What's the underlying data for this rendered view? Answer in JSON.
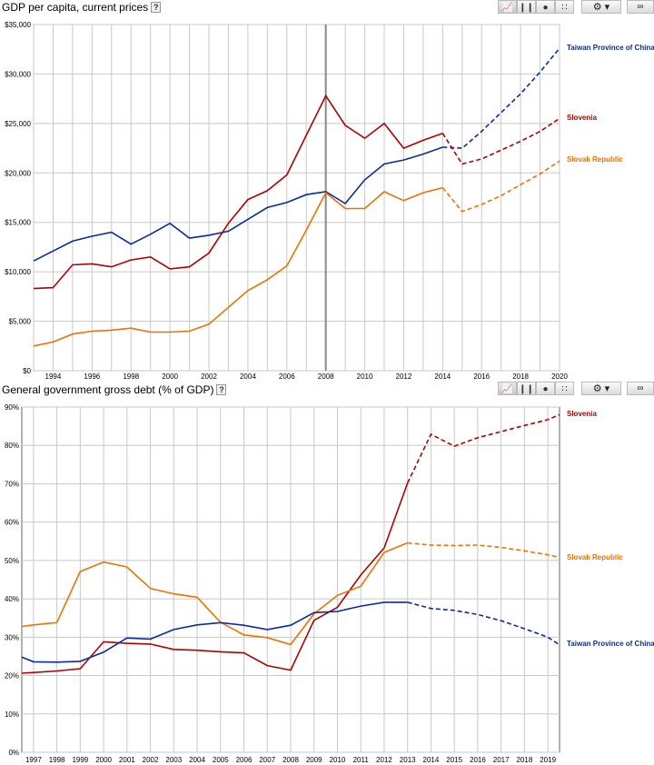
{
  "toolbar": {
    "line_icon": "line-chart-icon",
    "bar_icon": "bar-chart-icon",
    "map_icon": "globe-icon",
    "scatter_icon": "scatter-icon",
    "settings_icon": "gear-icon",
    "link_icon": "link-icon",
    "help_label": "?"
  },
  "colors": {
    "taiwan": "#0a2ba0",
    "slovenia": "#b00000",
    "slovak": "#f07000",
    "grid": "#c8c8c8",
    "axis": "#666666"
  },
  "chart_data": [
    {
      "type": "line",
      "title": "GDP per capita, current prices",
      "help": "?",
      "xlim": [
        1993,
        2020
      ],
      "ylim": [
        0,
        35000
      ],
      "x_ticks": [
        1994,
        1996,
        1998,
        2000,
        2002,
        2004,
        2006,
        2008,
        2010,
        2012,
        2014,
        2016,
        2018,
        2020
      ],
      "y_ticks": [
        0,
        5000,
        10000,
        15000,
        20000,
        25000,
        30000,
        35000
      ],
      "y_tick_labels": [
        "$0",
        "$5,000",
        "$10,000",
        "$15,000",
        "$20,000",
        "$25,000",
        "$30,000",
        "$35,000"
      ],
      "grid": true,
      "highlight_x": 2008,
      "legend_position": "right",
      "series": [
        {
          "name": "Taiwan Province of China",
          "color_key": "taiwan",
          "forecast_from": 2014,
          "x": [
            1993,
            1994,
            1995,
            1996,
            1997,
            1998,
            1999,
            2000,
            2001,
            2002,
            2003,
            2004,
            2005,
            2006,
            2007,
            2008,
            2009,
            2010,
            2011,
            2012,
            2013,
            2014,
            2015,
            2016,
            2017,
            2018,
            2019,
            2020
          ],
          "values": [
            11100,
            12100,
            13100,
            13600,
            14000,
            12800,
            13800,
            14900,
            13400,
            13700,
            14100,
            15300,
            16500,
            17000,
            17800,
            18100,
            16900,
            19300,
            20900,
            21300,
            21900,
            22600,
            22500,
            24200,
            26100,
            28000,
            30200,
            32600
          ]
        },
        {
          "name": "Slovenia",
          "color_key": "slovenia",
          "forecast_from": 2014,
          "x": [
            1993,
            1994,
            1995,
            1996,
            1997,
            1998,
            1999,
            2000,
            2001,
            2002,
            2003,
            2004,
            2005,
            2006,
            2007,
            2008,
            2009,
            2010,
            2011,
            2012,
            2013,
            2014,
            2015,
            2016,
            2017,
            2018,
            2019,
            2020
          ],
          "values": [
            8300,
            8400,
            10700,
            10800,
            10500,
            11200,
            11500,
            10300,
            10500,
            11900,
            14900,
            17300,
            18200,
            19800,
            23800,
            27800,
            24800,
            23500,
            25000,
            22500,
            23300,
            24000,
            20900,
            21400,
            22300,
            23200,
            24200,
            25500
          ]
        },
        {
          "name": "Slovak Republic",
          "color_key": "slovak",
          "forecast_from": 2014,
          "x": [
            1993,
            1994,
            1995,
            1996,
            1997,
            1998,
            1999,
            2000,
            2001,
            2002,
            2003,
            2004,
            2005,
            2006,
            2007,
            2008,
            2009,
            2010,
            2011,
            2012,
            2013,
            2014,
            2015,
            2016,
            2017,
            2018,
            2019,
            2020
          ],
          "values": [
            2500,
            2900,
            3700,
            4000,
            4100,
            4300,
            3900,
            3900,
            4000,
            4700,
            6400,
            8100,
            9200,
            10600,
            14200,
            18000,
            16400,
            16400,
            18100,
            17200,
            18000,
            18500,
            16100,
            16800,
            17700,
            18800,
            19900,
            21200
          ]
        }
      ]
    },
    {
      "type": "line",
      "title": "General government gross debt (% of GDP)",
      "help": "?",
      "xlim": [
        1996.5,
        2019.5
      ],
      "ylim": [
        0,
        90
      ],
      "x_ticks": [
        1997,
        1998,
        1999,
        2000,
        2001,
        2002,
        2003,
        2004,
        2005,
        2006,
        2007,
        2008,
        2009,
        2010,
        2011,
        2012,
        2013,
        2014,
        2015,
        2016,
        2017,
        2018,
        2019
      ],
      "y_ticks": [
        0,
        10,
        20,
        30,
        40,
        50,
        60,
        70,
        80,
        90
      ],
      "y_tick_labels": [
        "0%",
        "10%",
        "20%",
        "30%",
        "40%",
        "50%",
        "60%",
        "70%",
        "80%",
        "90%"
      ],
      "grid": true,
      "legend_position": "right",
      "series": [
        {
          "name": "Slovenia",
          "color_key": "slovenia",
          "forecast_from": 2013,
          "x": [
            1996.5,
            1997,
            1998,
            1999,
            2000,
            2001,
            2002,
            2003,
            2004,
            2005,
            2006,
            2007,
            2008,
            2009,
            2010,
            2011,
            2012,
            2013,
            2014,
            2015,
            2016,
            2017,
            2018,
            2019,
            2019.5
          ],
          "values": [
            20.6,
            20.8,
            21.2,
            21.8,
            28.8,
            28.4,
            28.2,
            26.8,
            26.6,
            26.2,
            25.9,
            22.6,
            21.4,
            34.4,
            37.8,
            46.2,
            53.3,
            70.2,
            82.9,
            79.8,
            82.0,
            83.6,
            85.2,
            86.7,
            88.0
          ]
        },
        {
          "name": "Slovak Republic",
          "color_key": "slovak",
          "forecast_from": 2013,
          "x": [
            1996.5,
            1997,
            1998,
            1999,
            2000,
            2001,
            2002,
            2003,
            2004,
            2005,
            2006,
            2007,
            2008,
            2009,
            2010,
            2011,
            2012,
            2013,
            2014,
            2015,
            2016,
            2017,
            2018,
            2019,
            2019.5
          ],
          "values": [
            32.8,
            33.2,
            33.8,
            47.1,
            49.6,
            48.3,
            42.7,
            41.3,
            40.4,
            33.9,
            30.6,
            29.9,
            28.1,
            36.1,
            40.9,
            43.3,
            52.1,
            54.6,
            54.0,
            53.9,
            54.0,
            53.4,
            52.5,
            51.5,
            50.8
          ]
        },
        {
          "name": "Taiwan Province of China",
          "color_key": "taiwan",
          "forecast_from": 2013,
          "x": [
            1996.5,
            1997,
            1998,
            1999,
            2000,
            2001,
            2002,
            2003,
            2004,
            2005,
            2006,
            2007,
            2008,
            2009,
            2010,
            2011,
            2012,
            2013,
            2014,
            2015,
            2016,
            2017,
            2018,
            2019,
            2019.5
          ],
          "values": [
            24.8,
            23.6,
            23.5,
            23.7,
            26.1,
            29.8,
            29.5,
            32.0,
            33.2,
            33.8,
            33.1,
            32.0,
            33.1,
            36.4,
            36.7,
            38.1,
            39.1,
            39.1,
            37.5,
            37.0,
            35.9,
            34.3,
            32.2,
            30.0,
            28.0
          ]
        }
      ]
    }
  ]
}
